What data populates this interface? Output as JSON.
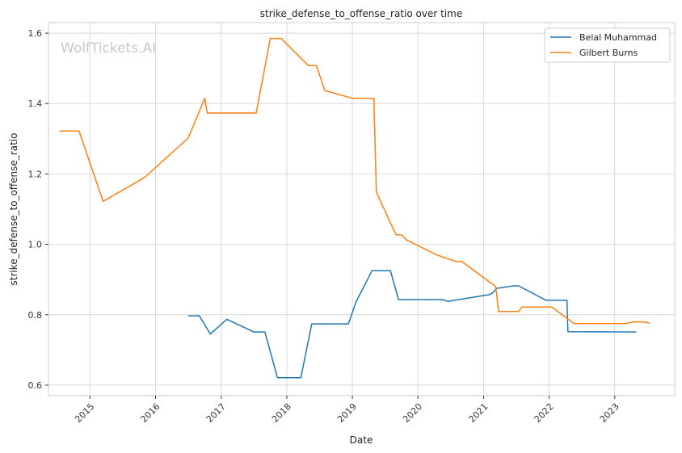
{
  "chart_data": {
    "type": "line",
    "title": "strike_defense_to_offense_ratio over time",
    "xlabel": "Date",
    "ylabel": "strike_defense_to_offense_ratio",
    "watermark": "WolfTickets.AI",
    "x_ticks": [
      "2015",
      "2016",
      "2017",
      "2018",
      "2019",
      "2020",
      "2021",
      "2022",
      "2023"
    ],
    "y_ticks": [
      "0.6",
      "0.8",
      "1.0",
      "1.2",
      "1.4",
      "1.6"
    ],
    "xlim": [
      "2014-05-15",
      "2023-12-01"
    ],
    "ylim": [
      0.57,
      1.63
    ],
    "grid": true,
    "legend_position": "top-right",
    "series": [
      {
        "name": "Belal Muhammad",
        "color": "#1f77b4",
        "points": [
          [
            "2016-07-01",
            0.797
          ],
          [
            "2016-09-01",
            0.797
          ],
          [
            "2016-11-01",
            0.745
          ],
          [
            "2017-02-01",
            0.787
          ],
          [
            "2017-07-01",
            0.751
          ],
          [
            "2017-09-01",
            0.751
          ],
          [
            "2017-11-10",
            0.621
          ],
          [
            "2018-03-20",
            0.621
          ],
          [
            "2018-05-20",
            0.774
          ],
          [
            "2018-12-10",
            0.774
          ],
          [
            "2019-01-20",
            0.835
          ],
          [
            "2019-04-20",
            0.925
          ],
          [
            "2019-08-01",
            0.925
          ],
          [
            "2019-09-15",
            0.843
          ],
          [
            "2020-05-15",
            0.843
          ],
          [
            "2020-06-15",
            0.838
          ],
          [
            "2021-02-01",
            0.857
          ],
          [
            "2021-02-20",
            0.862
          ],
          [
            "2021-03-15",
            0.875
          ],
          [
            "2021-06-15",
            0.882
          ],
          [
            "2021-07-15",
            0.882
          ],
          [
            "2021-12-15",
            0.841
          ],
          [
            "2022-04-10",
            0.841
          ],
          [
            "2022-04-15",
            0.752
          ],
          [
            "2023-05-01",
            0.751
          ]
        ]
      },
      {
        "name": "Gilbert Burns",
        "color": "#ff7f0e",
        "points": [
          [
            "2014-07-15",
            1.322
          ],
          [
            "2014-11-01",
            1.322
          ],
          [
            "2015-03-15",
            1.122
          ],
          [
            "2015-11-01",
            1.19
          ],
          [
            "2016-07-01",
            1.302
          ],
          [
            "2016-10-01",
            1.415
          ],
          [
            "2016-10-15",
            1.373
          ],
          [
            "2017-07-15",
            1.373
          ],
          [
            "2017-10-01",
            1.585
          ],
          [
            "2017-12-01",
            1.585
          ],
          [
            "2018-05-01",
            1.508
          ],
          [
            "2018-06-15",
            1.508
          ],
          [
            "2018-08-01",
            1.437
          ],
          [
            "2019-01-01",
            1.415
          ],
          [
            "2019-05-01",
            1.415
          ],
          [
            "2019-05-15",
            1.148
          ],
          [
            "2019-09-01",
            1.027
          ],
          [
            "2019-10-01",
            1.027
          ],
          [
            "2019-11-01",
            1.012
          ],
          [
            "2020-04-15",
            0.97
          ],
          [
            "2020-08-01",
            0.951
          ],
          [
            "2020-09-01",
            0.951
          ],
          [
            "2021-03-10",
            0.88
          ],
          [
            "2021-03-25",
            0.809
          ],
          [
            "2021-07-15",
            0.809
          ],
          [
            "2021-08-01",
            0.822
          ],
          [
            "2022-01-15",
            0.822
          ],
          [
            "2022-05-20",
            0.775
          ],
          [
            "2023-03-01",
            0.775
          ],
          [
            "2023-04-15",
            0.78
          ],
          [
            "2023-06-15",
            0.779
          ],
          [
            "2023-07-15",
            0.776
          ]
        ]
      }
    ]
  }
}
